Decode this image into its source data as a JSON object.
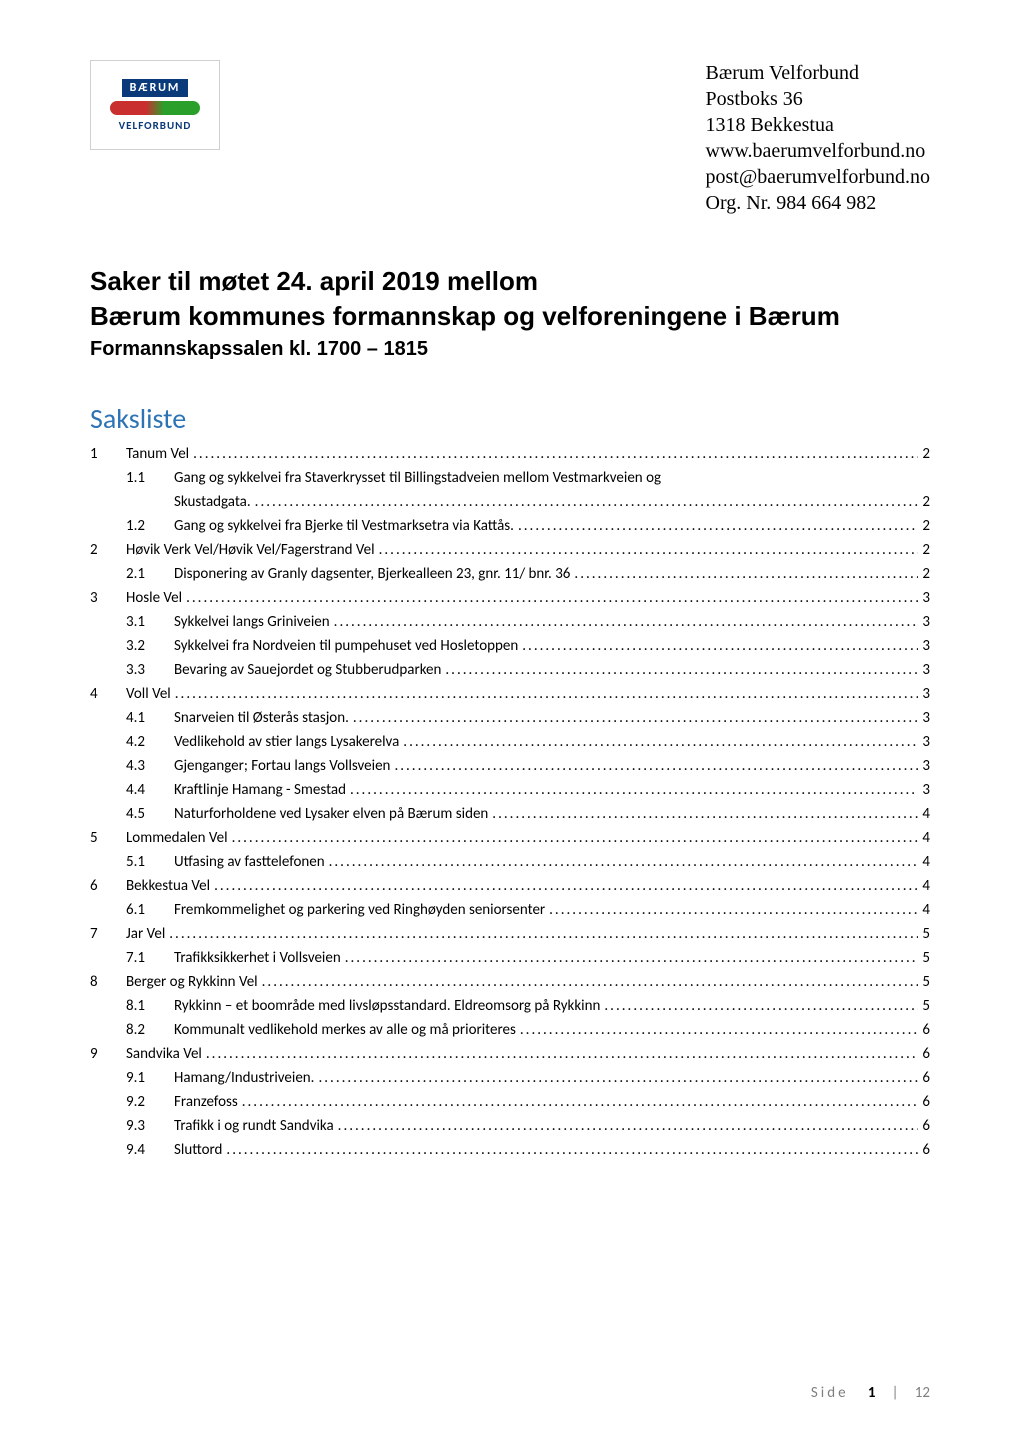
{
  "logo": {
    "top": "BÆRUM",
    "bottom": "VELFORBUND"
  },
  "org": {
    "name": "Bærum Velforbund",
    "addr1": "Postboks 36",
    "addr2": "1318 Bekkestua",
    "web": "www.baerumvelforbund.no",
    "email": "post@baerumvelforbund.no",
    "orgnr": "Org. Nr. 984 664 982"
  },
  "title": {
    "line1": "Saker til møtet 24. april 2019 mellom",
    "line2": "Bærum kommunes formannskap og velforeningene i Bærum",
    "line3": "Formannskapssalen kl. 1700 – 1815"
  },
  "toc_heading": "Saksliste",
  "toc": [
    {
      "level": 1,
      "num": "1",
      "label": "Tanum Vel",
      "page": "2"
    },
    {
      "level": 2,
      "num": "1.1",
      "label": "Gang og sykkelvei fra Staverkrysset til Billingstadveien mellom Vestmarkveien og",
      "wrap": "Skustadgata.",
      "page": "2"
    },
    {
      "level": 2,
      "num": "1.2",
      "label": "Gang og sykkelvei fra Bjerke til Vestmarksetra via Kattås.",
      "page": "2"
    },
    {
      "level": 1,
      "num": "2",
      "label": "Høvik Verk Vel/Høvik Vel/Fagerstrand Vel",
      "page": "2"
    },
    {
      "level": 2,
      "num": "2.1",
      "label": "Disponering av Granly dagsenter, Bjerkealleen 23, gnr. 11/ bnr. 36",
      "page": "2"
    },
    {
      "level": 1,
      "num": "3",
      "label": "Hosle Vel",
      "page": "3"
    },
    {
      "level": 2,
      "num": "3.1",
      "label": "Sykkelvei langs Griniveien",
      "page": "3"
    },
    {
      "level": 2,
      "num": "3.2",
      "label": "Sykkelvei fra Nordveien til pumpehuset ved Hosletoppen",
      "page": "3"
    },
    {
      "level": 2,
      "num": "3.3",
      "label": "Bevaring av Sauejordet og Stubberudparken",
      "page": "3"
    },
    {
      "level": 1,
      "num": "4",
      "label": "Voll Vel",
      "page": "3"
    },
    {
      "level": 2,
      "num": "4.1",
      "label": "Snarveien til Østerås stasjon.",
      "page": "3"
    },
    {
      "level": 2,
      "num": "4.2",
      "label": "Vedlikehold av stier langs Lysakerelva",
      "page": "3"
    },
    {
      "level": 2,
      "num": "4.3",
      "label": "Gjenganger; Fortau langs Vollsveien",
      "page": "3"
    },
    {
      "level": 2,
      "num": "4.4",
      "label": "Kraftlinje Hamang - Smestad",
      "page": "3"
    },
    {
      "level": 2,
      "num": "4.5",
      "label": "Naturforholdene ved Lysaker elven på Bærum siden",
      "page": "4"
    },
    {
      "level": 1,
      "num": "5",
      "label": "Lommedalen Vel",
      "page": "4"
    },
    {
      "level": 2,
      "num": "5.1",
      "label": "Utfasing av fasttelefonen",
      "page": "4"
    },
    {
      "level": 1,
      "num": "6",
      "label": "Bekkestua Vel",
      "page": "4"
    },
    {
      "level": 2,
      "num": "6.1",
      "label": "Fremkommelighet og parkering ved Ringhøyden seniorsenter",
      "page": "4"
    },
    {
      "level": 1,
      "num": "7",
      "label": "Jar Vel",
      "page": "5"
    },
    {
      "level": 2,
      "num": "7.1",
      "label": "Trafikksikkerhet i Vollsveien",
      "page": "5"
    },
    {
      "level": 1,
      "num": "8",
      "label": "Berger og Rykkinn Vel",
      "page": "5"
    },
    {
      "level": 2,
      "num": "8.1",
      "label": "Rykkinn – et boområde med livsløpsstandard.  Eldreomsorg på Rykkinn",
      "page": "5"
    },
    {
      "level": 2,
      "num": "8.2",
      "label": "Kommunalt vedlikehold merkes av alle og må prioriteres",
      "page": "6"
    },
    {
      "level": 1,
      "num": "9",
      "label": "Sandvika Vel",
      "page": "6"
    },
    {
      "level": 2,
      "num": "9.1",
      "label": "Hamang/Industriveien.",
      "page": "6"
    },
    {
      "level": 2,
      "num": "9.2",
      "label": "Franzefoss",
      "page": "6"
    },
    {
      "level": 2,
      "num": "9.3",
      "label": "Trafikk i og rundt Sandvika",
      "page": "6"
    },
    {
      "level": 2,
      "num": "9.4",
      "label": "Sluttord",
      "page": "6"
    }
  ],
  "leader_dots": "..........................................................................................................................................................................................",
  "footer": {
    "prefix": "Side",
    "current": "1",
    "sep": "|",
    "total": "12"
  },
  "colors": {
    "heading": "#2e74b5",
    "text": "#000000",
    "footer_grey": "#7f7f7f",
    "logo_blue": "#0b3a7a"
  },
  "fontsizes": {
    "org": 20,
    "title_main": 26,
    "title_sub": 20,
    "toc_heading": 28,
    "toc": 15,
    "footer": 15
  }
}
